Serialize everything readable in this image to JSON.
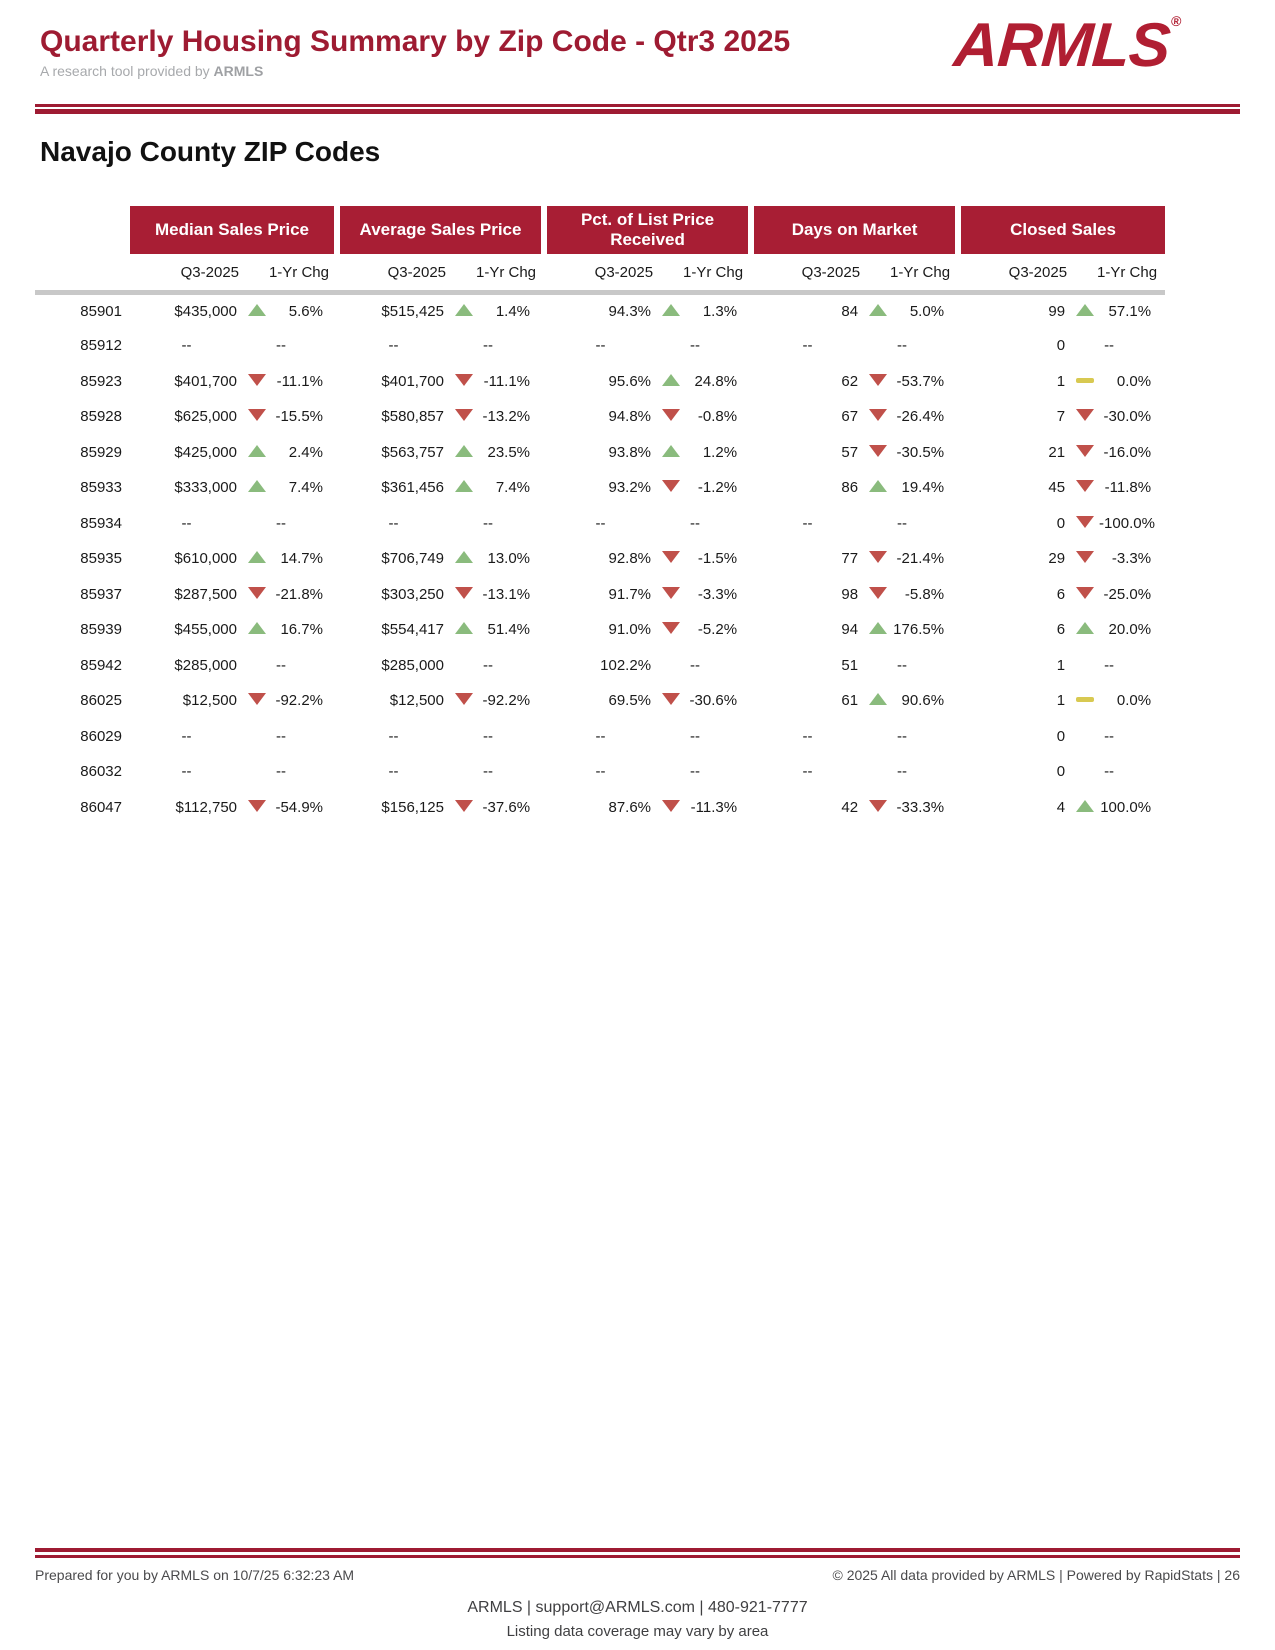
{
  "header": {
    "title": "Quarterly Housing Summary by Zip Code - Qtr3 2025",
    "subtitle_prefix": "A research tool provided by ",
    "subtitle_brand": "ARMLS",
    "logo_text": "ARMLS",
    "logo_reg": "®"
  },
  "section_title": "Navajo County ZIP Codes",
  "table": {
    "groups": [
      {
        "label": "Median Sales Price"
      },
      {
        "label": "Average Sales Price"
      },
      {
        "label": "Pct. of List Price Received"
      },
      {
        "label": "Days on Market"
      },
      {
        "label": "Closed Sales"
      }
    ],
    "subheaders": {
      "value": "Q3-2025",
      "change": "1-Yr Chg"
    },
    "rows": [
      {
        "zip": "85901",
        "cells": [
          {
            "v": "$435,000",
            "t": "up",
            "c": "5.6%"
          },
          {
            "v": "$515,425",
            "t": "up",
            "c": "1.4%"
          },
          {
            "v": "94.3%",
            "t": "up",
            "c": "1.3%"
          },
          {
            "v": "84",
            "t": "up",
            "c": "5.0%"
          },
          {
            "v": "99",
            "t": "up",
            "c": "57.1%"
          }
        ]
      },
      {
        "zip": "85912",
        "cells": [
          {
            "v": "--",
            "t": null,
            "c": "--"
          },
          {
            "v": "--",
            "t": null,
            "c": "--"
          },
          {
            "v": "--",
            "t": null,
            "c": "--"
          },
          {
            "v": "--",
            "t": null,
            "c": "--"
          },
          {
            "v": "0",
            "t": null,
            "c": "--"
          }
        ]
      },
      {
        "zip": "85923",
        "cells": [
          {
            "v": "$401,700",
            "t": "down",
            "c": "-11.1%"
          },
          {
            "v": "$401,700",
            "t": "down",
            "c": "-11.1%"
          },
          {
            "v": "95.6%",
            "t": "up",
            "c": "24.8%"
          },
          {
            "v": "62",
            "t": "down",
            "c": "-53.7%"
          },
          {
            "v": "1",
            "t": "flat",
            "c": "0.0%"
          }
        ]
      },
      {
        "zip": "85928",
        "cells": [
          {
            "v": "$625,000",
            "t": "down",
            "c": "-15.5%"
          },
          {
            "v": "$580,857",
            "t": "down",
            "c": "-13.2%"
          },
          {
            "v": "94.8%",
            "t": "down",
            "c": "-0.8%"
          },
          {
            "v": "67",
            "t": "down",
            "c": "-26.4%"
          },
          {
            "v": "7",
            "t": "down",
            "c": "-30.0%"
          }
        ]
      },
      {
        "zip": "85929",
        "cells": [
          {
            "v": "$425,000",
            "t": "up",
            "c": "2.4%"
          },
          {
            "v": "$563,757",
            "t": "up",
            "c": "23.5%"
          },
          {
            "v": "93.8%",
            "t": "up",
            "c": "1.2%"
          },
          {
            "v": "57",
            "t": "down",
            "c": "-30.5%"
          },
          {
            "v": "21",
            "t": "down",
            "c": "-16.0%"
          }
        ]
      },
      {
        "zip": "85933",
        "cells": [
          {
            "v": "$333,000",
            "t": "up",
            "c": "7.4%"
          },
          {
            "v": "$361,456",
            "t": "up",
            "c": "7.4%"
          },
          {
            "v": "93.2%",
            "t": "down",
            "c": "-1.2%"
          },
          {
            "v": "86",
            "t": "up",
            "c": "19.4%"
          },
          {
            "v": "45",
            "t": "down",
            "c": "-11.8%"
          }
        ]
      },
      {
        "zip": "85934",
        "cells": [
          {
            "v": "--",
            "t": null,
            "c": "--"
          },
          {
            "v": "--",
            "t": null,
            "c": "--"
          },
          {
            "v": "--",
            "t": null,
            "c": "--"
          },
          {
            "v": "--",
            "t": null,
            "c": "--"
          },
          {
            "v": "0",
            "t": "down",
            "c": "-100.0%"
          }
        ]
      },
      {
        "zip": "85935",
        "cells": [
          {
            "v": "$610,000",
            "t": "up",
            "c": "14.7%"
          },
          {
            "v": "$706,749",
            "t": "up",
            "c": "13.0%"
          },
          {
            "v": "92.8%",
            "t": "down",
            "c": "-1.5%"
          },
          {
            "v": "77",
            "t": "down",
            "c": "-21.4%"
          },
          {
            "v": "29",
            "t": "down",
            "c": "-3.3%"
          }
        ]
      },
      {
        "zip": "85937",
        "cells": [
          {
            "v": "$287,500",
            "t": "down",
            "c": "-21.8%"
          },
          {
            "v": "$303,250",
            "t": "down",
            "c": "-13.1%"
          },
          {
            "v": "91.7%",
            "t": "down",
            "c": "-3.3%"
          },
          {
            "v": "98",
            "t": "down",
            "c": "-5.8%"
          },
          {
            "v": "6",
            "t": "down",
            "c": "-25.0%"
          }
        ]
      },
      {
        "zip": "85939",
        "cells": [
          {
            "v": "$455,000",
            "t": "up",
            "c": "16.7%"
          },
          {
            "v": "$554,417",
            "t": "up",
            "c": "51.4%"
          },
          {
            "v": "91.0%",
            "t": "down",
            "c": "-5.2%"
          },
          {
            "v": "94",
            "t": "up",
            "c": "176.5%"
          },
          {
            "v": "6",
            "t": "up",
            "c": "20.0%"
          }
        ]
      },
      {
        "zip": "85942",
        "cells": [
          {
            "v": "$285,000",
            "t": null,
            "c": "--"
          },
          {
            "v": "$285,000",
            "t": null,
            "c": "--"
          },
          {
            "v": "102.2%",
            "t": null,
            "c": "--"
          },
          {
            "v": "51",
            "t": null,
            "c": "--"
          },
          {
            "v": "1",
            "t": null,
            "c": "--"
          }
        ]
      },
      {
        "zip": "86025",
        "cells": [
          {
            "v": "$12,500",
            "t": "down",
            "c": "-92.2%"
          },
          {
            "v": "$12,500",
            "t": "down",
            "c": "-92.2%"
          },
          {
            "v": "69.5%",
            "t": "down",
            "c": "-30.6%"
          },
          {
            "v": "61",
            "t": "up",
            "c": "90.6%"
          },
          {
            "v": "1",
            "t": "flat",
            "c": "0.0%"
          }
        ]
      },
      {
        "zip": "86029",
        "cells": [
          {
            "v": "--",
            "t": null,
            "c": "--"
          },
          {
            "v": "--",
            "t": null,
            "c": "--"
          },
          {
            "v": "--",
            "t": null,
            "c": "--"
          },
          {
            "v": "--",
            "t": null,
            "c": "--"
          },
          {
            "v": "0",
            "t": null,
            "c": "--"
          }
        ]
      },
      {
        "zip": "86032",
        "cells": [
          {
            "v": "--",
            "t": null,
            "c": "--"
          },
          {
            "v": "--",
            "t": null,
            "c": "--"
          },
          {
            "v": "--",
            "t": null,
            "c": "--"
          },
          {
            "v": "--",
            "t": null,
            "c": "--"
          },
          {
            "v": "0",
            "t": null,
            "c": "--"
          }
        ]
      },
      {
        "zip": "86047",
        "cells": [
          {
            "v": "$112,750",
            "t": "down",
            "c": "-54.9%"
          },
          {
            "v": "$156,125",
            "t": "down",
            "c": "-37.6%"
          },
          {
            "v": "87.6%",
            "t": "down",
            "c": "-11.3%"
          },
          {
            "v": "42",
            "t": "down",
            "c": "-33.3%"
          },
          {
            "v": "4",
            "t": "up",
            "c": "100.0%"
          }
        ]
      }
    ]
  },
  "footer": {
    "prepared": "Prepared for you by ARMLS on 10/7/25 6:32:23 AM",
    "copyright": "© 2025 All data provided by ARMLS | Powered by RapidStats",
    "page": "| 26",
    "contact": "ARMLS | support@ARMLS.com | 480-921-7777",
    "coverage_note": "Listing data coverage may vary by area"
  },
  "colors": {
    "brand": "#9e1b32",
    "header_bar": "#a81e34",
    "trend_up": "#8abb7d",
    "trend_down": "#c0504a",
    "trend_flat": "#d8c951",
    "rule_gray": "#c8c8c8"
  }
}
